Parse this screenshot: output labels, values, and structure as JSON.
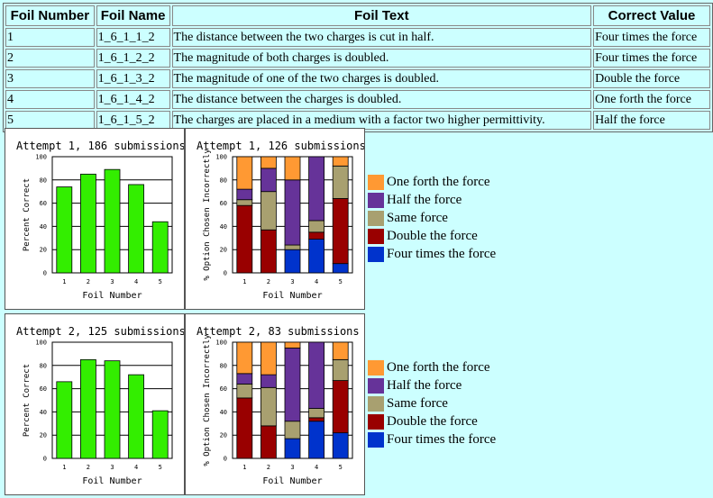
{
  "table": {
    "headers": [
      "Foil Number",
      "Foil Name",
      "Foil Text",
      "Correct Value"
    ],
    "rows": [
      [
        "1",
        "1_6_1_1_2",
        "The distance between the two charges is cut in half.",
        "Four times the force"
      ],
      [
        "2",
        "1_6_1_2_2",
        "The magnitude of both charges is doubled.",
        "Four times the force"
      ],
      [
        "3",
        "1_6_1_3_2",
        "The magnitude of one of the two charges is doubled.",
        "Double the force"
      ],
      [
        "4",
        "1_6_1_4_2",
        "The distance between the charges is doubled.",
        "One forth the force"
      ],
      [
        "5",
        "1_6_1_5_2",
        "The charges are placed in a medium with a factor two higher permittivity.",
        "Half the force"
      ]
    ]
  },
  "legend": [
    {
      "label": "One forth the force",
      "color": "#ff9933"
    },
    {
      "label": "Half the force",
      "color": "#663399"
    },
    {
      "label": "Same force",
      "color": "#a8a070"
    },
    {
      "label": "Double the force",
      "color": "#990000"
    },
    {
      "label": "Four times the force",
      "color": "#0033cc"
    }
  ],
  "chart_data": [
    {
      "type": "bar",
      "title": "Attempt 1, 186 submissions",
      "xlabel": "Foil Number",
      "ylabel": "Percent Correct",
      "categories": [
        "1",
        "2",
        "3",
        "4",
        "5"
      ],
      "values": [
        74,
        85,
        89,
        76,
        44
      ],
      "ylim": [
        0,
        100
      ],
      "yticks": [
        0,
        20,
        40,
        60,
        80,
        100
      ],
      "bar_color": "#33ee00"
    },
    {
      "type": "bar",
      "stacked": true,
      "title": "Attempt 1, 126 submissions",
      "xlabel": "Foil Number",
      "ylabel": "% Option Chosen Incorrectly",
      "categories": [
        "1",
        "2",
        "3",
        "4",
        "5"
      ],
      "ylim": [
        0,
        100
      ],
      "yticks": [
        0,
        20,
        40,
        60,
        80,
        100
      ],
      "series": [
        {
          "name": "Four times the force",
          "values": [
            0,
            0,
            20,
            29,
            8
          ]
        },
        {
          "name": "Double the force",
          "values": [
            58,
            37,
            0,
            6,
            56
          ]
        },
        {
          "name": "Same force",
          "values": [
            5,
            33,
            4,
            10,
            28
          ]
        },
        {
          "name": "Half the force",
          "values": [
            9,
            20,
            56,
            55,
            0
          ]
        },
        {
          "name": "One forth the force",
          "values": [
            28,
            10,
            20,
            0,
            8
          ]
        }
      ]
    },
    {
      "type": "bar",
      "title": "Attempt 2, 125 submissions",
      "xlabel": "Foil Number",
      "ylabel": "Percent Correct",
      "categories": [
        "1",
        "2",
        "3",
        "4",
        "5"
      ],
      "values": [
        66,
        85,
        84,
        72,
        41
      ],
      "ylim": [
        0,
        100
      ],
      "yticks": [
        0,
        20,
        40,
        60,
        80,
        100
      ],
      "bar_color": "#33ee00"
    },
    {
      "type": "bar",
      "stacked": true,
      "title": "Attempt 2, 83 submissions",
      "xlabel": "Foil Number",
      "ylabel": "% Option Chosen Incorrectly",
      "categories": [
        "1",
        "2",
        "3",
        "4",
        "5"
      ],
      "ylim": [
        0,
        100
      ],
      "yticks": [
        0,
        20,
        40,
        60,
        80,
        100
      ],
      "series": [
        {
          "name": "Four times the force",
          "values": [
            0,
            0,
            17,
            32,
            22
          ]
        },
        {
          "name": "Double the force",
          "values": [
            52,
            28,
            0,
            3,
            45
          ]
        },
        {
          "name": "Same force",
          "values": [
            12,
            33,
            15,
            8,
            18
          ]
        },
        {
          "name": "Half the force",
          "values": [
            9,
            11,
            63,
            57,
            0
          ]
        },
        {
          "name": "One forth the force",
          "values": [
            27,
            28,
            5,
            0,
            15
          ]
        }
      ]
    }
  ]
}
